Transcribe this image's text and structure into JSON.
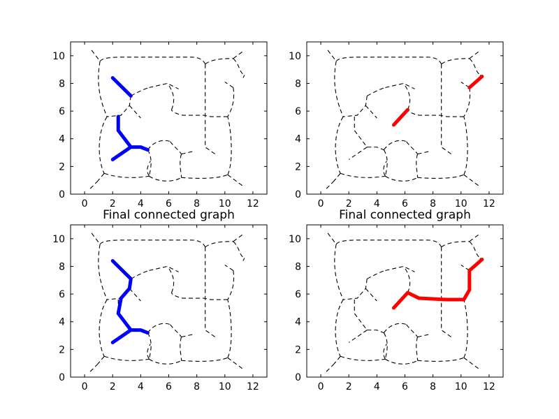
{
  "chart_data": [
    {
      "type": "line",
      "title": "",
      "xlim": [
        -1,
        13
      ],
      "ylim": [
        0,
        11
      ],
      "xticks": [
        0,
        2,
        4,
        6,
        8,
        10,
        12
      ],
      "yticks": [
        0,
        2,
        4,
        6,
        8,
        10
      ],
      "path_color": "#0000ff",
      "paths": [
        [
          [
            2.0,
            8.4
          ],
          [
            3.3,
            7.1
          ]
        ],
        [
          [
            2.4,
            5.6
          ],
          [
            2.4,
            4.6
          ],
          [
            3.3,
            3.4
          ],
          [
            4.0,
            3.4
          ],
          [
            4.5,
            3.2
          ]
        ],
        [
          [
            3.3,
            3.4
          ],
          [
            2.0,
            2.5
          ]
        ]
      ]
    },
    {
      "type": "line",
      "title": "",
      "xlim": [
        -1,
        13
      ],
      "ylim": [
        0,
        11
      ],
      "xticks": [
        0,
        2,
        4,
        6,
        8,
        10,
        12
      ],
      "yticks": [
        0,
        2,
        4,
        6,
        8,
        10
      ],
      "path_color": "#ff0000",
      "paths": [
        [
          [
            5.2,
            5.0
          ],
          [
            6.2,
            6.1
          ]
        ],
        [
          [
            10.6,
            7.7
          ],
          [
            11.5,
            8.5
          ]
        ]
      ]
    },
    {
      "type": "line",
      "title": "Final connected graph",
      "xlim": [
        -1,
        13
      ],
      "ylim": [
        0,
        11
      ],
      "xticks": [
        0,
        2,
        4,
        6,
        8,
        10,
        12
      ],
      "yticks": [
        0,
        2,
        4,
        6,
        8,
        10
      ],
      "path_color": "#0000ff",
      "paths": [
        [
          [
            2.0,
            8.4
          ],
          [
            3.3,
            7.1
          ],
          [
            3.2,
            6.4
          ],
          [
            2.6,
            5.7
          ],
          [
            2.4,
            4.6
          ],
          [
            3.3,
            3.4
          ],
          [
            4.0,
            3.4
          ],
          [
            4.5,
            3.2
          ]
        ],
        [
          [
            3.3,
            3.4
          ],
          [
            2.0,
            2.5
          ]
        ]
      ]
    },
    {
      "type": "line",
      "title": "Final connected graph",
      "xlim": [
        -1,
        13
      ],
      "ylim": [
        0,
        11
      ],
      "xticks": [
        0,
        2,
        4,
        6,
        8,
        10,
        12
      ],
      "yticks": [
        0,
        2,
        4,
        6,
        8,
        10
      ],
      "path_color": "#ff0000",
      "paths": [
        [
          [
            5.2,
            5.0
          ],
          [
            6.2,
            6.1
          ],
          [
            7.0,
            5.7
          ],
          [
            8.0,
            5.65
          ],
          [
            9.0,
            5.6
          ],
          [
            10.2,
            5.6
          ],
          [
            10.6,
            6.3
          ],
          [
            10.6,
            7.7
          ],
          [
            11.5,
            8.5
          ]
        ]
      ]
    }
  ]
}
